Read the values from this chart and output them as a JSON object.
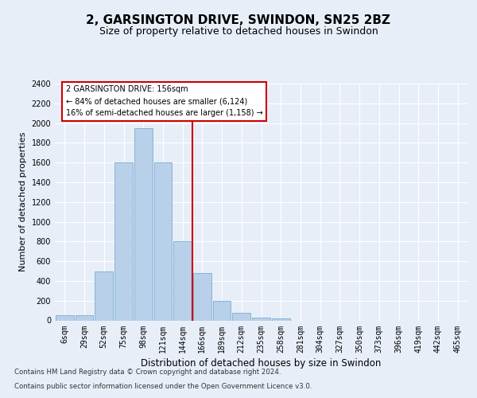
{
  "title": "2, GARSINGTON DRIVE, SWINDON, SN25 2BZ",
  "subtitle": "Size of property relative to detached houses in Swindon",
  "xlabel": "Distribution of detached houses by size in Swindon",
  "ylabel": "Number of detached properties",
  "categories": [
    "6sqm",
    "29sqm",
    "52sqm",
    "75sqm",
    "98sqm",
    "121sqm",
    "144sqm",
    "166sqm",
    "189sqm",
    "212sqm",
    "235sqm",
    "258sqm",
    "281sqm",
    "304sqm",
    "327sqm",
    "350sqm",
    "373sqm",
    "396sqm",
    "419sqm",
    "442sqm",
    "465sqm"
  ],
  "values": [
    50,
    50,
    500,
    1600,
    1950,
    1600,
    800,
    480,
    200,
    80,
    30,
    20,
    0,
    0,
    0,
    0,
    0,
    0,
    0,
    0,
    0
  ],
  "bar_color": "#b8d0ea",
  "bar_edge_color": "#7aaed0",
  "vline_color": "#cc0000",
  "ylim": [
    0,
    2400
  ],
  "yticks": [
    0,
    200,
    400,
    600,
    800,
    1000,
    1200,
    1400,
    1600,
    1800,
    2000,
    2200,
    2400
  ],
  "annotation_title": "2 GARSINGTON DRIVE: 156sqm",
  "annotation_line1": "← 84% of detached houses are smaller (6,124)",
  "annotation_line2": "16% of semi-detached houses are larger (1,158) →",
  "footer1": "Contains HM Land Registry data © Crown copyright and database right 2024.",
  "footer2": "Contains public sector information licensed under the Open Government Licence v3.0.",
  "bg_color": "#e8eef8",
  "plot_bg_color": "#e8eef8",
  "grid_color": "#ffffff",
  "title_fontsize": 11,
  "subtitle_fontsize": 9,
  "ylabel_fontsize": 8,
  "xlabel_fontsize": 8.5,
  "tick_fontsize": 7,
  "ann_fontsize": 7,
  "footer_fontsize": 6.2
}
